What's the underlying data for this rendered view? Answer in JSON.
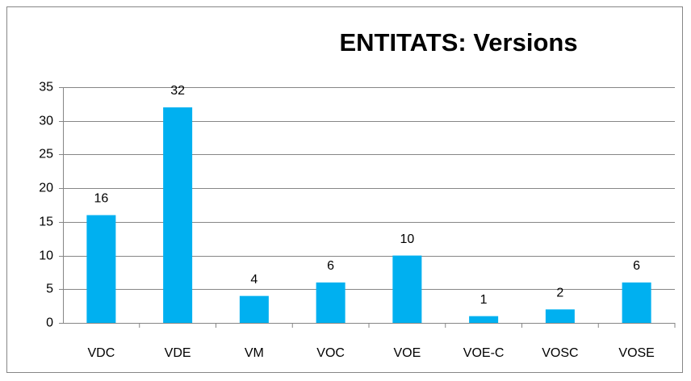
{
  "chart_data": {
    "type": "bar",
    "title": "ENTITATS: Versions",
    "categories": [
      "VDC",
      "VDE",
      "VM",
      "VOC",
      "VOE",
      "VOE-C",
      "VOSC",
      "VOSE"
    ],
    "values": [
      16,
      32,
      4,
      6,
      10,
      1,
      2,
      6
    ],
    "color": "#00b0f0",
    "ylim": [
      0,
      35
    ],
    "yticks": [
      0,
      5,
      10,
      15,
      20,
      25,
      30,
      35
    ],
    "grid": true
  }
}
